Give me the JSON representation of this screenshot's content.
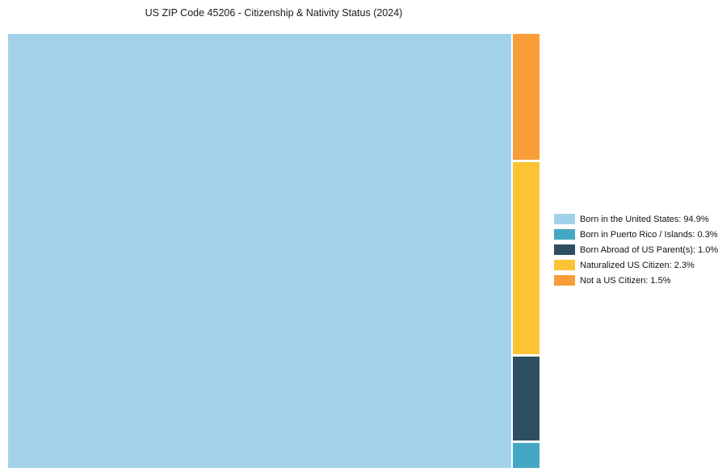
{
  "title": "US ZIP Code 45206 - Citizenship & Nativity Status (2024)",
  "chart_data": {
    "type": "treemap",
    "title": "US ZIP Code 45206 - Citizenship & Nativity Status (2024)",
    "legend_position": "right",
    "layout_hint": "largest segment fills left block full-height; remaining segments stacked top-to-bottom in a narrow right column in reverse legend order",
    "segments": [
      {
        "label": "Born in the United States",
        "value_pct": "94.9",
        "color": "#A2D2EA"
      },
      {
        "label": "Born in Puerto Rico / Islands",
        "value_pct": "0.3",
        "color": "#44A8C4"
      },
      {
        "label": "Born Abroad of US Parent(s)",
        "value_pct": "1.0",
        "color": "#2E4F62"
      },
      {
        "label": "Naturalized US Citizen",
        "value_pct": "2.3",
        "color": "#FCC435"
      },
      {
        "label": "Not a US Citizen",
        "value_pct": "1.5",
        "color": "#F99D38"
      }
    ]
  }
}
